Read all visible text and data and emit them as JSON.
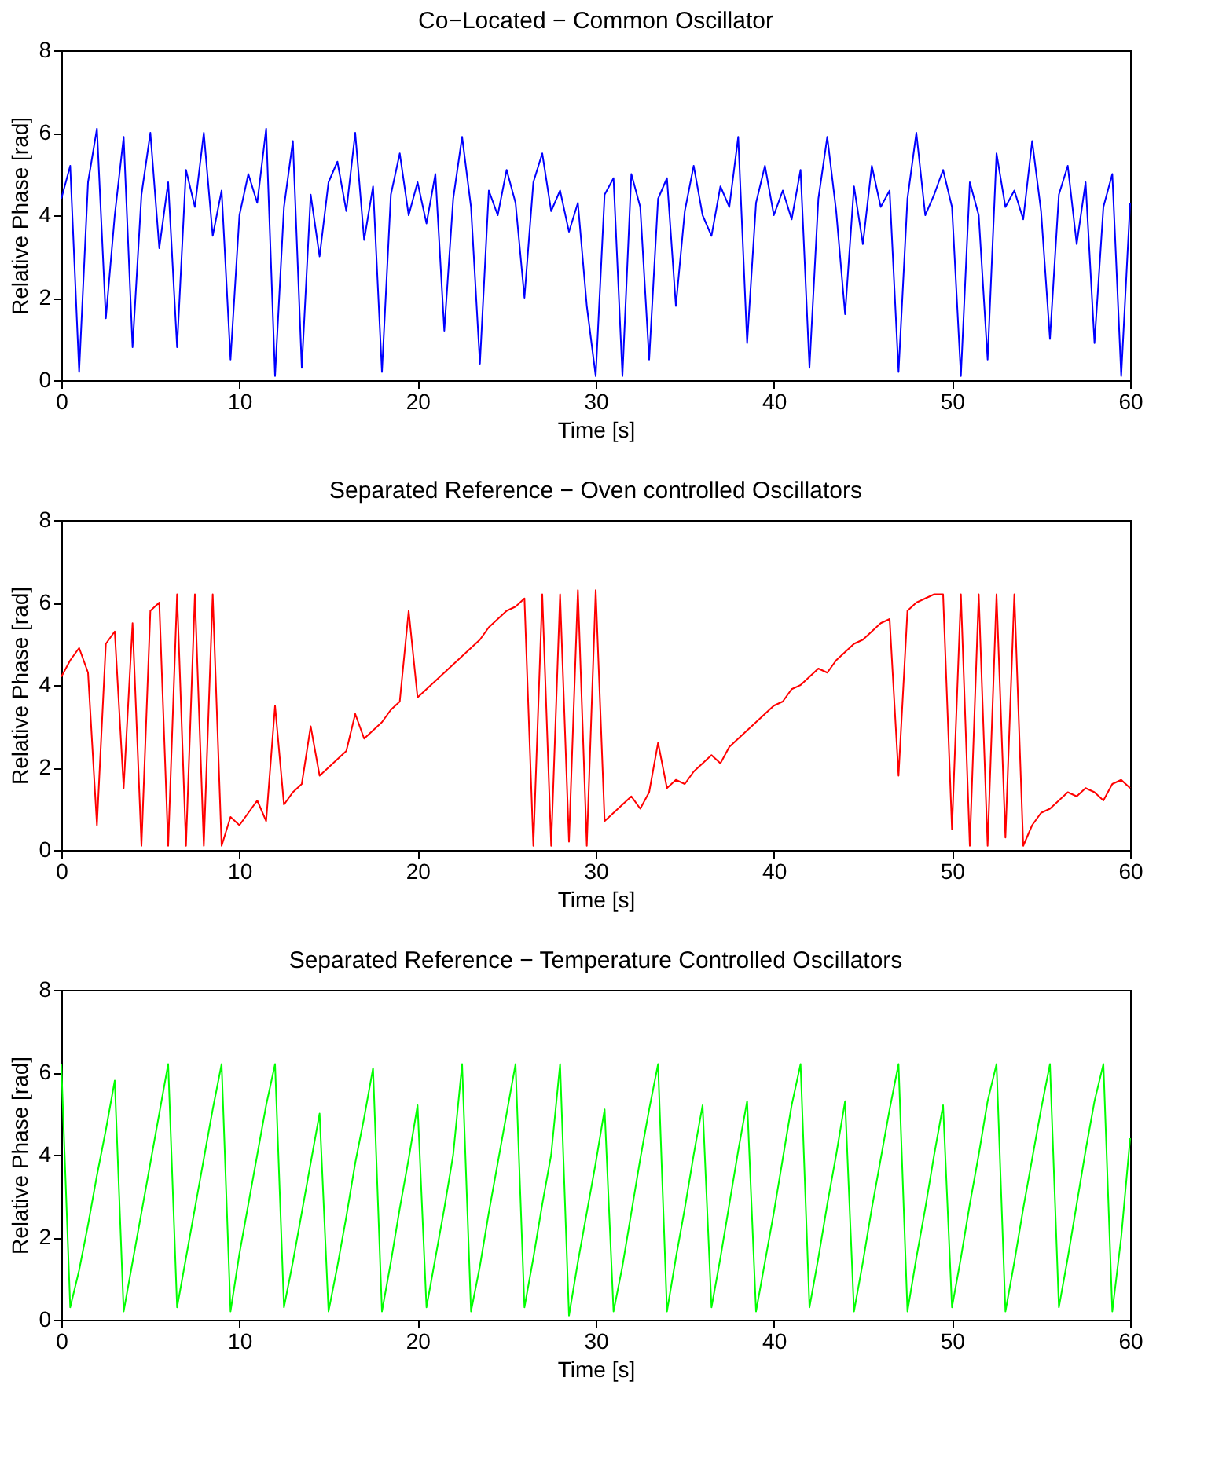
{
  "chart_data": [
    {
      "type": "line",
      "title": "Co−Located − Common Oscillator",
      "xlabel": "Time [s]",
      "ylabel": "Relative Phase [rad]",
      "xlim": [
        0,
        60
      ],
      "xticks": [
        0,
        10,
        20,
        30,
        40,
        50,
        60
      ],
      "ylim": [
        0,
        8
      ],
      "yticks": [
        0,
        2,
        4,
        6,
        8
      ],
      "grid": false,
      "x": [
        0,
        0.5,
        1,
        1.5,
        2,
        2.5,
        3,
        3.5,
        4,
        4.5,
        5,
        5.5,
        6,
        6.5,
        7,
        7.5,
        8,
        8.5,
        9,
        9.5,
        10,
        10.5,
        11,
        11.5,
        12,
        12.5,
        13,
        13.5,
        14,
        14.5,
        15,
        15.5,
        16,
        16.5,
        17,
        17.5,
        18,
        18.5,
        19,
        19.5,
        20,
        20.5,
        21,
        21.5,
        22,
        22.5,
        23,
        23.5,
        24,
        24.5,
        25,
        25.5,
        26,
        26.5,
        27,
        27.5,
        28,
        28.5,
        29,
        29.5,
        30,
        30.5,
        31,
        31.5,
        32,
        32.5,
        33,
        33.5,
        34,
        34.5,
        35,
        35.5,
        36,
        36.5,
        37,
        37.5,
        38,
        38.5,
        39,
        39.5,
        40,
        40.5,
        41,
        41.5,
        42,
        42.5,
        43,
        43.5,
        44,
        44.5,
        45,
        45.5,
        46,
        46.5,
        47,
        47.5,
        48,
        48.5,
        49,
        49.5,
        50,
        50.5,
        51,
        51.5,
        52,
        52.5,
        53,
        53.5,
        54,
        54.5,
        55,
        55.5,
        56,
        56.5,
        57,
        57.5,
        58,
        58.5,
        59,
        59.5,
        60
      ],
      "series": [
        {
          "color": "#0000ff",
          "values": [
            4.4,
            5.2,
            0.2,
            4.8,
            6.1,
            1.5,
            4.0,
            5.9,
            0.8,
            4.5,
            6.0,
            3.2,
            4.8,
            0.8,
            5.1,
            4.2,
            6.0,
            3.5,
            4.6,
            0.5,
            4.0,
            5.0,
            4.3,
            6.1,
            0.1,
            4.2,
            5.8,
            0.3,
            4.5,
            3.0,
            4.8,
            5.3,
            4.1,
            6.0,
            3.4,
            4.7,
            0.2,
            4.5,
            5.5,
            4.0,
            4.8,
            3.8,
            5.0,
            1.2,
            4.4,
            5.9,
            4.2,
            0.4,
            4.6,
            4.0,
            5.1,
            4.3,
            2.0,
            4.8,
            5.5,
            4.1,
            4.6,
            3.6,
            4.3,
            1.8,
            0.1,
            4.5,
            4.9,
            0.1,
            5.0,
            4.2,
            0.5,
            4.4,
            4.9,
            1.8,
            4.1,
            5.2,
            4.0,
            3.5,
            4.7,
            4.2,
            5.9,
            0.9,
            4.3,
            5.2,
            4.0,
            4.6,
            3.9,
            5.1,
            0.3,
            4.4,
            5.9,
            4.1,
            1.6,
            4.7,
            3.3,
            5.2,
            4.2,
            4.6,
            0.2,
            4.4,
            6.0,
            4.0,
            4.5,
            5.1,
            4.2,
            0.1,
            4.8,
            4.0,
            0.5,
            5.5,
            4.2,
            4.6,
            3.9,
            5.8,
            4.1,
            1.0,
            4.5,
            5.2,
            3.3,
            4.8,
            0.9,
            4.2,
            5.0,
            0.1,
            4.3
          ]
        }
      ]
    },
    {
      "type": "line",
      "title": "Separated Reference − Oven controlled Oscillators",
      "xlabel": "Time [s]",
      "ylabel": "Relative Phase [rad]",
      "xlim": [
        0,
        60
      ],
      "xticks": [
        0,
        10,
        20,
        30,
        40,
        50,
        60
      ],
      "ylim": [
        0,
        8
      ],
      "yticks": [
        0,
        2,
        4,
        6,
        8
      ],
      "grid": false,
      "x": [
        0,
        0.5,
        1,
        1.5,
        2,
        2.5,
        3,
        3.5,
        4,
        4.5,
        5,
        5.5,
        6,
        6.5,
        7,
        7.5,
        8,
        8.5,
        9,
        9.5,
        10,
        10.5,
        11,
        11.5,
        12,
        12.5,
        13,
        13.5,
        14,
        14.5,
        15,
        15.5,
        16,
        16.5,
        17,
        17.5,
        18,
        18.5,
        19,
        19.5,
        20,
        20.5,
        21,
        21.5,
        22,
        22.5,
        23,
        23.5,
        24,
        24.5,
        25,
        25.5,
        26,
        26.5,
        27,
        27.5,
        28,
        28.5,
        29,
        29.5,
        30,
        30.5,
        31,
        31.5,
        32,
        32.5,
        33,
        33.5,
        34,
        34.5,
        35,
        35.5,
        36,
        36.5,
        37,
        37.5,
        38,
        38.5,
        39,
        39.5,
        40,
        40.5,
        41,
        41.5,
        42,
        42.5,
        43,
        43.5,
        44,
        44.5,
        45,
        45.5,
        46,
        46.5,
        47,
        47.5,
        48,
        48.5,
        49,
        49.5,
        50,
        50.5,
        51,
        51.5,
        52,
        52.5,
        53,
        53.5,
        54,
        54.5,
        55,
        55.5,
        56,
        56.5,
        57,
        57.5,
        58,
        58.5,
        59,
        59.5,
        60
      ],
      "series": [
        {
          "color": "#ff0000",
          "values": [
            4.2,
            4.6,
            4.9,
            4.3,
            0.6,
            5.0,
            5.3,
            1.5,
            5.5,
            0.1,
            5.8,
            6.0,
            0.1,
            6.2,
            0.1,
            6.2,
            0.1,
            6.2,
            0.1,
            0.8,
            0.6,
            0.9,
            1.2,
            0.7,
            3.5,
            1.1,
            1.4,
            1.6,
            3.0,
            1.8,
            2.0,
            2.2,
            2.4,
            3.3,
            2.7,
            2.9,
            3.1,
            3.4,
            3.6,
            5.8,
            3.7,
            3.9,
            4.1,
            4.3,
            4.5,
            4.7,
            4.9,
            5.1,
            5.4,
            5.6,
            5.8,
            5.9,
            6.1,
            0.1,
            6.2,
            0.1,
            6.2,
            0.2,
            6.3,
            0.1,
            6.3,
            0.7,
            0.9,
            1.1,
            1.3,
            1.0,
            1.4,
            2.6,
            1.5,
            1.7,
            1.6,
            1.9,
            2.1,
            2.3,
            2.1,
            2.5,
            2.7,
            2.9,
            3.1,
            3.3,
            3.5,
            3.6,
            3.9,
            4.0,
            4.2,
            4.4,
            4.3,
            4.6,
            4.8,
            5.0,
            5.1,
            5.3,
            5.5,
            5.6,
            1.8,
            5.8,
            6.0,
            6.1,
            6.2,
            6.2,
            0.5,
            6.2,
            0.1,
            6.2,
            0.1,
            6.2,
            0.3,
            6.2,
            0.1,
            0.6,
            0.9,
            1.0,
            1.2,
            1.4,
            1.3,
            1.5,
            1.4,
            1.2,
            1.6,
            1.7,
            1.5
          ]
        }
      ]
    },
    {
      "type": "line",
      "title": "Separated Reference − Temperature Controlled Oscillators",
      "xlabel": "Time [s]",
      "ylabel": "Relative Phase [rad]",
      "xlim": [
        0,
        60
      ],
      "xticks": [
        0,
        10,
        20,
        30,
        40,
        50,
        60
      ],
      "ylim": [
        0,
        8
      ],
      "yticks": [
        0,
        2,
        4,
        6,
        8
      ],
      "grid": false,
      "x": [
        0,
        0.5,
        1,
        1.5,
        2,
        2.5,
        3,
        3.5,
        4,
        4.5,
        5,
        5.5,
        6,
        6.5,
        7,
        7.5,
        8,
        8.5,
        9,
        9.5,
        10,
        10.5,
        11,
        11.5,
        12,
        12.5,
        13,
        13.5,
        14,
        14.5,
        15,
        15.5,
        16,
        16.5,
        17,
        17.5,
        18,
        18.5,
        19,
        19.5,
        20,
        20.5,
        21,
        21.5,
        22,
        22.5,
        23,
        23.5,
        24,
        24.5,
        25,
        25.5,
        26,
        26.5,
        27,
        27.5,
        28,
        28.5,
        29,
        29.5,
        30,
        30.5,
        31,
        31.5,
        32,
        32.5,
        33,
        33.5,
        34,
        34.5,
        35,
        35.5,
        36,
        36.5,
        37,
        37.5,
        38,
        38.5,
        39,
        39.5,
        40,
        40.5,
        41,
        41.5,
        42,
        42.5,
        43,
        43.5,
        44,
        44.5,
        45,
        45.5,
        46,
        46.5,
        47,
        47.5,
        48,
        48.5,
        49,
        49.5,
        50,
        50.5,
        51,
        51.5,
        52,
        52.5,
        53,
        53.5,
        54,
        54.5,
        55,
        55.5,
        56,
        56.5,
        57,
        57.5,
        58,
        58.5,
        59,
        59.5,
        60
      ],
      "series": [
        {
          "color": "#00ff00",
          "values": [
            6.2,
            0.3,
            1.2,
            2.3,
            3.5,
            4.6,
            5.8,
            0.2,
            1.4,
            2.6,
            3.8,
            5.0,
            6.2,
            0.3,
            1.5,
            2.7,
            3.9,
            5.1,
            6.2,
            0.2,
            1.6,
            2.8,
            4.0,
            5.2,
            6.2,
            0.3,
            1.4,
            2.6,
            3.8,
            5.0,
            0.2,
            1.3,
            2.5,
            3.8,
            4.9,
            6.1,
            0.2,
            1.4,
            2.7,
            3.9,
            5.2,
            0.3,
            1.5,
            2.7,
            4.0,
            6.2,
            0.2,
            1.3,
            2.6,
            3.8,
            5.0,
            6.2,
            0.3,
            1.5,
            2.8,
            4.0,
            6.2,
            0.1,
            1.4,
            2.6,
            3.8,
            5.1,
            0.2,
            1.3,
            2.6,
            3.9,
            5.1,
            6.2,
            0.2,
            1.5,
            2.7,
            4.0,
            5.2,
            0.3,
            1.5,
            2.8,
            4.1,
            5.3,
            0.2,
            1.4,
            2.6,
            3.9,
            5.2,
            6.2,
            0.3,
            1.5,
            2.8,
            4.0,
            5.3,
            0.2,
            1.4,
            2.7,
            3.9,
            5.1,
            6.2,
            0.2,
            1.5,
            2.7,
            4.0,
            5.2,
            0.3,
            1.5,
            2.8,
            4.0,
            5.3,
            6.2,
            0.2,
            1.4,
            2.7,
            3.9,
            5.1,
            6.2,
            0.3,
            1.5,
            2.8,
            4.1,
            5.3,
            6.2,
            0.2,
            2.0,
            4.4
          ]
        }
      ]
    }
  ]
}
